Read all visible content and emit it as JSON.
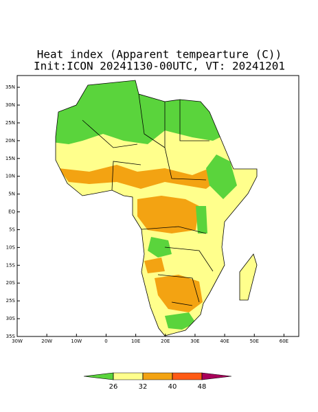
{
  "chart_data": {
    "type": "map",
    "title": "Heat index (Apparent tempearture (C))",
    "subtitle": "Init:ICON 20241130-00UTC, VT: 20241201",
    "xlim": [
      -30,
      65
    ],
    "ylim": [
      -35,
      38.3
    ],
    "xticks": [
      {
        "value": -30,
        "label": "30W"
      },
      {
        "value": -20,
        "label": "20W"
      },
      {
        "value": -10,
        "label": "10W"
      },
      0,
      {
        "value": 10,
        "label": "10E"
      },
      {
        "value": 20,
        "label": "20E"
      },
      {
        "value": 30,
        "label": "30E"
      },
      {
        "value": 40,
        "label": "40E"
      },
      {
        "value": 50,
        "label": "50E"
      },
      {
        "value": 60,
        "label": "60E"
      }
    ],
    "yticks": [
      {
        "value": 35,
        "label": "35N"
      },
      {
        "value": 30,
        "label": "30N"
      },
      {
        "value": 25,
        "label": "25N"
      },
      {
        "value": 20,
        "label": "20N"
      },
      {
        "value": 15,
        "label": "15N"
      },
      {
        "value": 10,
        "label": "10N"
      },
      {
        "value": 5,
        "label": "5N"
      },
      {
        "value": 0,
        "label": "EQ"
      },
      {
        "value": -5,
        "label": "5S"
      },
      {
        "value": -10,
        "label": "10S"
      },
      {
        "value": -15,
        "label": "15S"
      },
      {
        "value": -20,
        "label": "20S"
      },
      {
        "value": -25,
        "label": "25S"
      },
      {
        "value": -30,
        "label": "30S"
      },
      {
        "value": -35,
        "label": "35S"
      }
    ],
    "colorbar": {
      "levels": [
        26,
        32,
        40,
        48
      ],
      "colors": [
        "#5ad43c",
        "#ffff8c",
        "#f3a312",
        "#ff5a14",
        "#a8005a"
      ]
    }
  }
}
